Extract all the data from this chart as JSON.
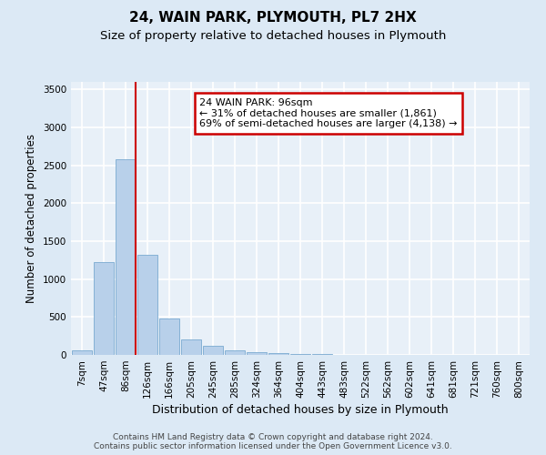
{
  "title": "24, WAIN PARK, PLYMOUTH, PL7 2HX",
  "subtitle": "Size of property relative to detached houses in Plymouth",
  "xlabel": "Distribution of detached houses by size in Plymouth",
  "ylabel": "Number of detached properties",
  "categories": [
    "7sqm",
    "47sqm",
    "86sqm",
    "126sqm",
    "166sqm",
    "205sqm",
    "245sqm",
    "285sqm",
    "324sqm",
    "364sqm",
    "404sqm",
    "443sqm",
    "483sqm",
    "522sqm",
    "562sqm",
    "602sqm",
    "641sqm",
    "681sqm",
    "721sqm",
    "760sqm",
    "800sqm"
  ],
  "values": [
    60,
    1220,
    2580,
    1320,
    480,
    200,
    125,
    60,
    35,
    20,
    12,
    8,
    6,
    4,
    3,
    2,
    2,
    1,
    1,
    1,
    1
  ],
  "bar_color": "#b8d0ea",
  "bar_edge_color": "#7aaad0",
  "red_line_index": 2,
  "annotation_text": "24 WAIN PARK: 96sqm\n← 31% of detached houses are smaller (1,861)\n69% of semi-detached houses are larger (4,138) →",
  "annotation_box_color": "#ffffff",
  "annotation_box_edge_color": "#cc0000",
  "red_line_color": "#cc0000",
  "ylim": [
    0,
    3600
  ],
  "yticks": [
    0,
    500,
    1000,
    1500,
    2000,
    2500,
    3000,
    3500
  ],
  "background_color": "#dce9f5",
  "plot_bg_color": "#e8f0f8",
  "grid_color": "#ffffff",
  "footer_line1": "Contains HM Land Registry data © Crown copyright and database right 2024.",
  "footer_line2": "Contains public sector information licensed under the Open Government Licence v3.0.",
  "title_fontsize": 11,
  "subtitle_fontsize": 9.5,
  "xlabel_fontsize": 9,
  "ylabel_fontsize": 8.5,
  "tick_fontsize": 7.5,
  "annot_fontsize": 8,
  "footer_fontsize": 6.5
}
